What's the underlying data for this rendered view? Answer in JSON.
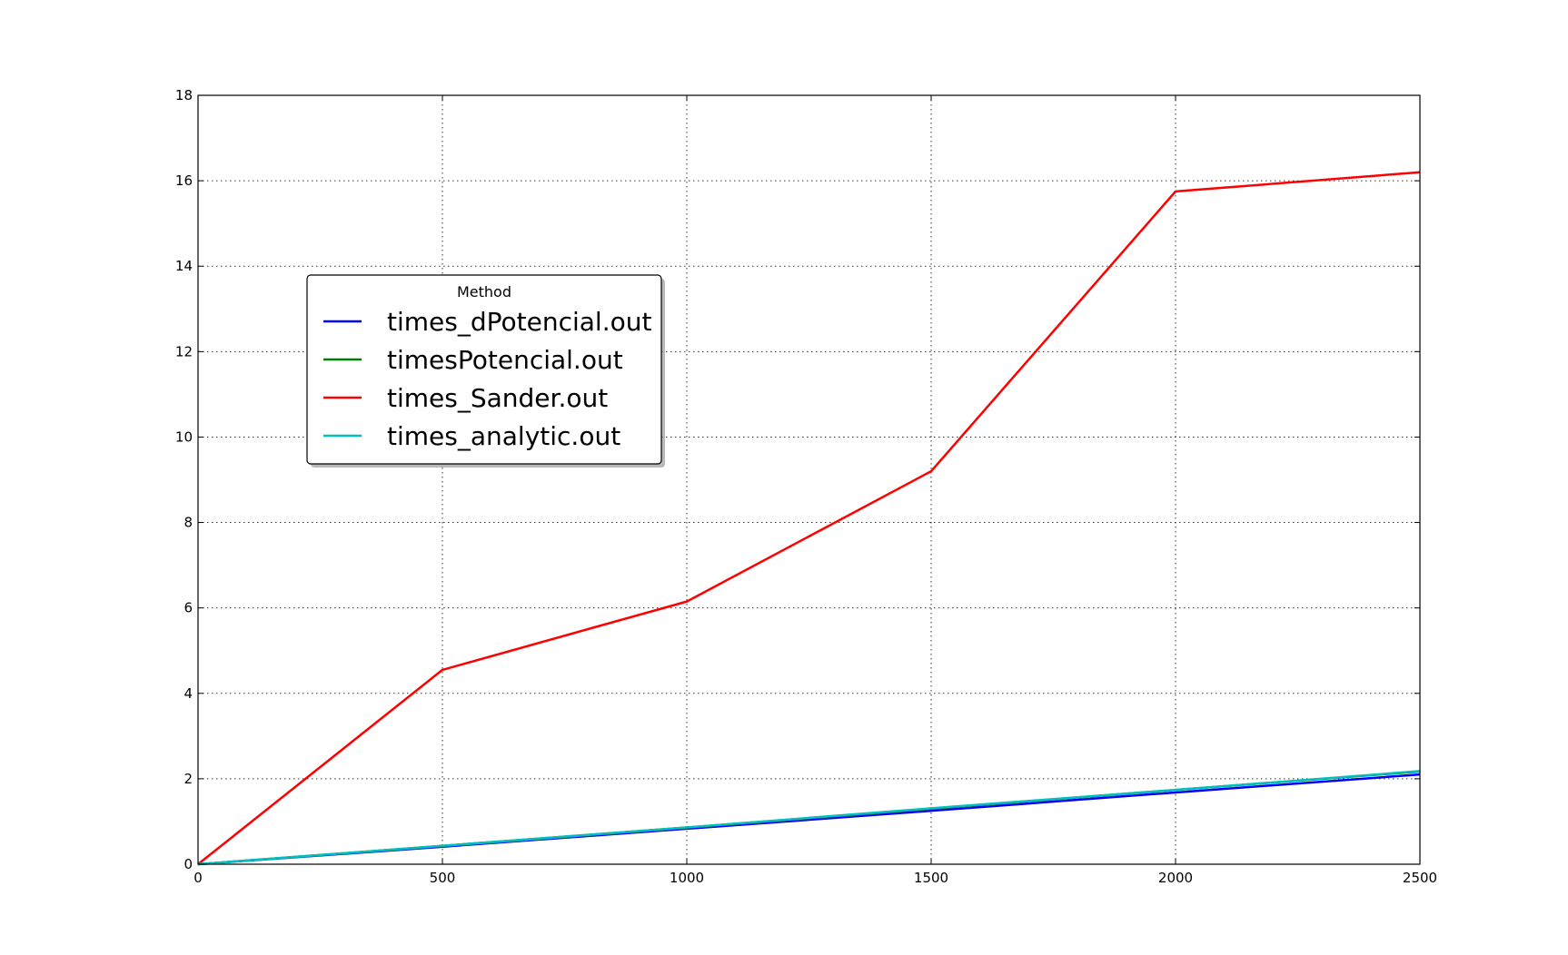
{
  "chart_data": {
    "type": "line",
    "title": "",
    "xlabel": "",
    "ylabel": "",
    "xlim": [
      0,
      2500
    ],
    "ylim": [
      0,
      18
    ],
    "xticks": [
      0,
      500,
      1000,
      1500,
      2000,
      2500
    ],
    "yticks": [
      0,
      2,
      4,
      6,
      8,
      10,
      12,
      14,
      16,
      18
    ],
    "grid": true,
    "legend": {
      "title": "Method",
      "placement": "upper-left-center"
    },
    "x": [
      0,
      500,
      1000,
      1500,
      2000,
      2500
    ],
    "series": [
      {
        "name": "times_dPotencial.out",
        "color": "#0000ff",
        "values": [
          0.0,
          0.41,
          0.83,
          1.25,
          1.68,
          2.1
        ]
      },
      {
        "name": "timesPotencial.out",
        "color": "#008000",
        "values": [
          0.0,
          0.43,
          0.86,
          1.3,
          1.74,
          2.17
        ]
      },
      {
        "name": "times_Sander.out",
        "color": "#ff0000",
        "values": [
          0.0,
          4.55,
          6.15,
          9.2,
          15.75,
          16.2
        ]
      },
      {
        "name": "times_analytic.out",
        "color": "#00bfbf",
        "values": [
          0.0,
          0.43,
          0.86,
          1.31,
          1.74,
          2.18
        ]
      }
    ]
  }
}
